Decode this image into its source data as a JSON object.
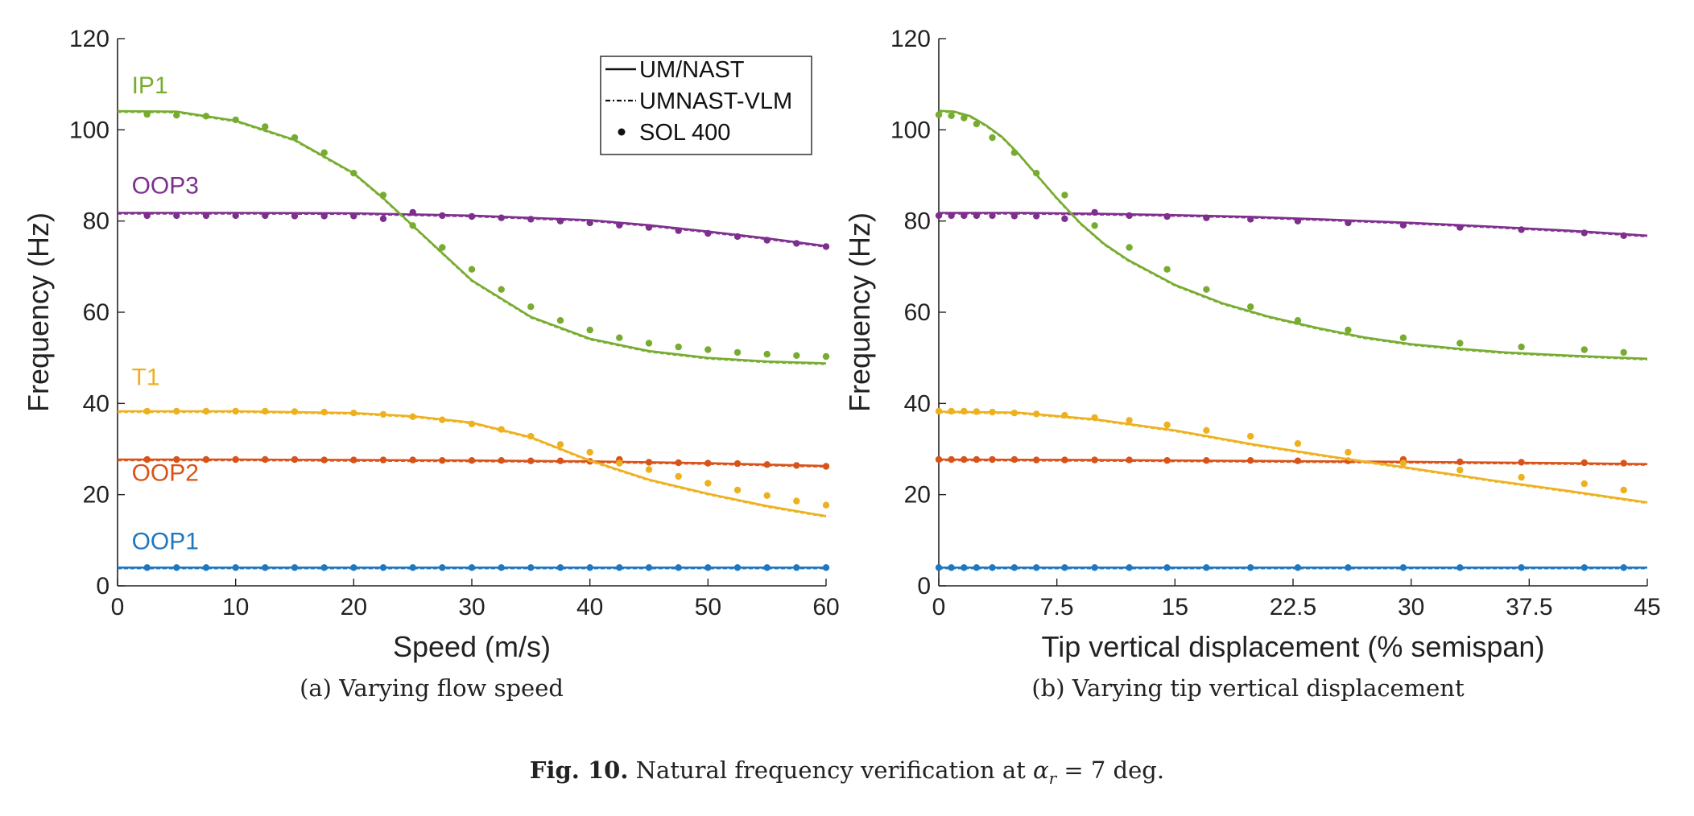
{
  "legend": [
    "UM/NAST",
    "UMNAST-VLM",
    "SOL 400"
  ],
  "colors": {
    "OOP1": "#1f77c0",
    "OOP2": "#d95319",
    "T1": "#edb120",
    "OOP3": "#7e2f8e",
    "IP1": "#77ac30"
  },
  "subcaptions": {
    "a": "(a) Varying flow speed",
    "b": "(b) Varying tip vertical displacement"
  },
  "caption": {
    "label": "Fig. 10.",
    "text": "Natural frequency verification at",
    "alpha": "α",
    "sub": "r",
    "rest": " = 7 deg."
  },
  "chart_data": [
    {
      "type": "line",
      "xlabel": "Speed (m/s)",
      "ylabel": "Frequency (Hz)",
      "xlim": [
        0,
        60
      ],
      "ylim": [
        0,
        120
      ],
      "xticks": [
        "0",
        "10",
        "20",
        "30",
        "40",
        "50",
        "60"
      ],
      "yticks": [
        "0",
        "20",
        "40",
        "60",
        "80",
        "100",
        "120"
      ],
      "legend_position": "top-right",
      "grid": false,
      "mode_labels": [
        {
          "text": "IP1",
          "series": "IP1",
          "x": 1.2,
          "y": 108
        },
        {
          "text": "OOP3",
          "series": "OOP3",
          "x": 1.2,
          "y": 86
        },
        {
          "text": "T1",
          "series": "T1",
          "x": 1.2,
          "y": 44
        },
        {
          "text": "OOP2",
          "series": "OOP2",
          "x": 1.2,
          "y": 23
        },
        {
          "text": "OOP1",
          "series": "OOP1",
          "x": 1.2,
          "y": 8
        }
      ],
      "series": [
        {
          "name": "OOP1",
          "curve_x": [
            0,
            10,
            20,
            30,
            40,
            50,
            60
          ],
          "curve_y": [
            4,
            4,
            4,
            4,
            4,
            4,
            4
          ],
          "points_x": [
            2.5,
            5,
            7.5,
            10,
            12.5,
            15,
            17.5,
            20,
            22.5,
            25,
            27.5,
            30,
            32.5,
            35,
            37.5,
            40,
            42.5,
            45,
            47.5,
            50,
            52.5,
            55,
            57.5,
            60
          ],
          "points_y": [
            4,
            4,
            4,
            4,
            4,
            4,
            4,
            4,
            4,
            4,
            4,
            4,
            4,
            4,
            4,
            4,
            4,
            4,
            4,
            4,
            4,
            4,
            4,
            4
          ]
        },
        {
          "name": "OOP2",
          "curve_x": [
            0,
            10,
            20,
            30,
            40,
            45,
            50,
            55,
            60
          ],
          "curve_y": [
            27.7,
            27.7,
            27.6,
            27.5,
            27.3,
            27.1,
            26.9,
            26.6,
            26.3
          ],
          "points_x": [
            2.5,
            5,
            7.5,
            10,
            12.5,
            15,
            17.5,
            20,
            22.5,
            25,
            27.5,
            30,
            32.5,
            35,
            37.5,
            40,
            42.5,
            45,
            47.5,
            50,
            52.5,
            55,
            57.5,
            60
          ],
          "points_y": [
            27.7,
            27.7,
            27.7,
            27.7,
            27.7,
            27.7,
            27.6,
            27.6,
            27.6,
            27.6,
            27.5,
            27.5,
            27.5,
            27.4,
            27.4,
            27.3,
            27.7,
            27.1,
            27.0,
            26.9,
            26.8,
            26.6,
            26.4,
            26.2
          ]
        },
        {
          "name": "T1",
          "curve_x": [
            0,
            10,
            20,
            25,
            30,
            35,
            40,
            45,
            50,
            55,
            60
          ],
          "curve_y": [
            38.3,
            38.3,
            37.9,
            37.2,
            35.8,
            32.6,
            27.5,
            23.3,
            20.2,
            17.5,
            15.3
          ],
          "points_x": [
            2.5,
            5,
            7.5,
            10,
            12.5,
            15,
            17.5,
            20,
            22.5,
            25,
            27.5,
            30,
            32.5,
            35,
            37.5,
            40,
            42.5,
            45,
            47.5,
            50,
            52.5,
            55,
            57.5,
            60
          ],
          "points_y": [
            38.3,
            38.3,
            38.3,
            38.3,
            38.3,
            38.2,
            38.1,
            37.9,
            37.6,
            37.1,
            36.4,
            35.5,
            34.3,
            32.8,
            31.0,
            29.3,
            26.9,
            25.5,
            24.0,
            22.5,
            21.0,
            19.8,
            18.6,
            17.7
          ]
        },
        {
          "name": "OOP3",
          "curve_x": [
            0,
            10,
            20,
            30,
            40,
            45,
            50,
            55,
            60
          ],
          "curve_y": [
            81.8,
            81.8,
            81.7,
            81.2,
            80.2,
            79.1,
            77.7,
            76.2,
            74.5
          ],
          "points_x": [
            2.5,
            5,
            7.5,
            10,
            12.5,
            15,
            17.5,
            20,
            22.5,
            25,
            27.5,
            30,
            32.5,
            35,
            37.5,
            40,
            42.5,
            45,
            47.5,
            50,
            52.5,
            55,
            57.5,
            60
          ],
          "points_y": [
            81.2,
            81.2,
            81.2,
            81.2,
            81.2,
            81.1,
            81.1,
            81.1,
            80.5,
            81.9,
            81.2,
            81.0,
            80.7,
            80.4,
            80.0,
            79.6,
            79.1,
            78.6,
            77.9,
            77.3,
            76.6,
            75.8,
            75.1,
            74.4
          ]
        },
        {
          "name": "IP1",
          "curve_x": [
            0,
            5,
            10,
            15,
            20,
            22.5,
            25,
            27.5,
            30,
            35,
            40,
            45,
            50,
            55,
            60
          ],
          "curve_y": [
            104.1,
            104.0,
            102.0,
            97.8,
            90.5,
            85.0,
            79.0,
            73.0,
            67.0,
            59.0,
            54.2,
            51.5,
            50.0,
            49.2,
            48.8
          ],
          "points_x": [
            2.5,
            5,
            7.5,
            10,
            12.5,
            15,
            17.5,
            20,
            22.5,
            25,
            27.5,
            30,
            32.5,
            35,
            37.5,
            40,
            42.5,
            45,
            47.5,
            50,
            52.5,
            55,
            57.5,
            60
          ],
          "points_y": [
            103.4,
            103.2,
            103.0,
            102.2,
            100.7,
            98.3,
            95.0,
            90.5,
            85.7,
            79.0,
            74.2,
            69.4,
            65.0,
            61.2,
            58.2,
            56.1,
            54.4,
            53.2,
            52.4,
            51.8,
            51.2,
            50.8,
            50.5,
            50.3
          ]
        }
      ]
    },
    {
      "type": "line",
      "xlabel": "Tip vertical displacement (% semispan)",
      "ylabel": "Frequency (Hz)",
      "xlim": [
        0,
        45
      ],
      "ylim": [
        0,
        120
      ],
      "xticks": [
        "0",
        "7.5",
        "15",
        "22.5",
        "30",
        "37.5",
        "45"
      ],
      "yticks": [
        "0",
        "20",
        "40",
        "60",
        "80",
        "100",
        "120"
      ],
      "grid": false,
      "series": [
        {
          "name": "OOP1",
          "curve_x": [
            0,
            45
          ],
          "curve_y": [
            4,
            4
          ],
          "points_x": [
            0,
            0.8,
            1.6,
            2.4,
            3.4,
            4.8,
            6.2,
            8,
            9.9,
            12.1,
            14.5,
            17,
            19.8,
            22.8,
            26,
            29.5,
            33.1,
            37,
            41,
            43.5
          ],
          "points_y": [
            4,
            4,
            4,
            4,
            4,
            4,
            4,
            4,
            4,
            4,
            4,
            4,
            4,
            4,
            4,
            4,
            4,
            4,
            4,
            4
          ]
        },
        {
          "name": "OOP2",
          "curve_x": [
            0,
            10,
            20,
            30,
            40,
            45
          ],
          "curve_y": [
            27.7,
            27.6,
            27.4,
            27.2,
            26.9,
            26.7
          ],
          "points_x": [
            0,
            0.8,
            1.6,
            2.4,
            3.4,
            4.8,
            6.2,
            8,
            9.9,
            12.1,
            14.5,
            17,
            19.8,
            22.8,
            26,
            29.5,
            33.1,
            37,
            41,
            43.5
          ],
          "points_y": [
            27.7,
            27.7,
            27.7,
            27.7,
            27.7,
            27.7,
            27.6,
            27.6,
            27.6,
            27.6,
            27.5,
            27.5,
            27.5,
            27.4,
            27.4,
            27.7,
            27.2,
            27.1,
            27.0,
            26.9
          ]
        },
        {
          "name": "T1",
          "curve_x": [
            0,
            5,
            10,
            15,
            20,
            25,
            30,
            35,
            40,
            45
          ],
          "curve_y": [
            38.2,
            38.0,
            36.5,
            34.1,
            31.0,
            28.3,
            25.8,
            23.2,
            20.8,
            18.3
          ],
          "points_x": [
            0,
            0.8,
            1.6,
            2.4,
            3.4,
            4.8,
            6.2,
            8,
            9.9,
            12.1,
            14.5,
            17,
            19.8,
            22.8,
            26,
            29.5,
            33.1,
            37,
            41,
            43.5
          ],
          "points_y": [
            38.3,
            38.3,
            38.3,
            38.2,
            38.1,
            37.9,
            37.7,
            37.4,
            36.9,
            36.3,
            35.3,
            34.1,
            32.8,
            31.2,
            29.3,
            26.9,
            25.4,
            23.8,
            22.4,
            21.0
          ]
        },
        {
          "name": "OOP3",
          "curve_x": [
            0,
            5,
            10,
            15,
            20,
            25,
            30,
            35,
            40,
            45
          ],
          "curve_y": [
            81.8,
            81.8,
            81.6,
            81.3,
            80.9,
            80.3,
            79.6,
            78.8,
            77.9,
            76.8
          ],
          "points_x": [
            0,
            0.8,
            1.6,
            2.4,
            3.4,
            4.8,
            6.2,
            8,
            9.9,
            12.1,
            14.5,
            17,
            19.8,
            22.8,
            26,
            29.5,
            33.1,
            37,
            41,
            43.5
          ],
          "points_y": [
            81.2,
            81.2,
            81.2,
            81.2,
            81.2,
            81.1,
            81.1,
            80.5,
            81.9,
            81.2,
            81.0,
            80.7,
            80.4,
            80.0,
            79.6,
            79.1,
            78.6,
            78.1,
            77.4,
            76.8
          ]
        },
        {
          "name": "IP1",
          "curve_x": [
            0,
            1,
            2,
            3,
            4,
            5,
            6,
            7.5,
            9,
            10.5,
            12,
            15,
            18,
            21,
            24,
            27,
            30,
            33,
            36,
            40,
            45
          ],
          "curve_y": [
            104.2,
            104.0,
            103.0,
            101.0,
            98.5,
            95.0,
            91.0,
            85.0,
            79.5,
            75.0,
            71.5,
            66.0,
            62.0,
            59.0,
            56.6,
            54.5,
            53.0,
            52.0,
            51.2,
            50.5,
            49.8
          ],
          "points_x": [
            0,
            0.8,
            1.6,
            2.4,
            3.4,
            4.8,
            6.2,
            8,
            9.9,
            12.1,
            14.5,
            17,
            19.8,
            22.8,
            26,
            29.5,
            33.1,
            37,
            41,
            43.5
          ],
          "points_y": [
            103.3,
            103.1,
            102.6,
            101.3,
            98.3,
            95.0,
            90.5,
            85.7,
            79.0,
            74.2,
            69.4,
            65.0,
            61.2,
            58.2,
            56.1,
            54.4,
            53.2,
            52.4,
            51.8,
            51.2
          ]
        }
      ]
    }
  ]
}
